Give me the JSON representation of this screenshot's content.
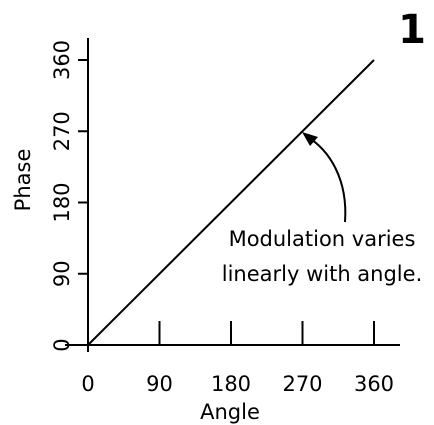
{
  "chart_data": {
    "type": "line",
    "panel_label": "1",
    "xlabel": "Angle",
    "ylabel": "Phase",
    "x": [
      0,
      360
    ],
    "series": [
      {
        "name": "Phase",
        "color": "#000000",
        "values": [
          0,
          360
        ]
      }
    ],
    "xlim": [
      0,
      360
    ],
    "ylim": [
      0,
      360
    ],
    "xticks": [
      0,
      90,
      180,
      270,
      360
    ],
    "yticks": [
      0,
      90,
      180,
      270,
      360
    ],
    "annotation": [
      "Modulation varies",
      "linearly with angle."
    ]
  }
}
